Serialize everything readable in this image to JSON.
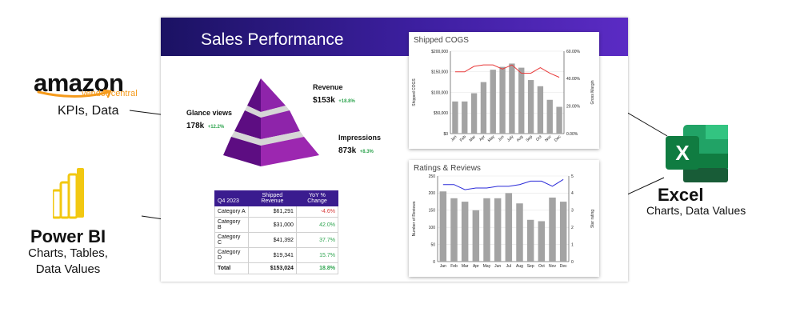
{
  "amazon": {
    "wordmark": "amazon",
    "sub": "vendor central",
    "caption": "KPIs, Data"
  },
  "powerbi": {
    "title": "Power BI",
    "lines": [
      "Charts, Tables,",
      "Data Values"
    ]
  },
  "excel": {
    "title": "Excel",
    "caption": "Charts, Data Values",
    "icon_letter": "X"
  },
  "slide": {
    "title": "Sales Performance",
    "pyramid": [
      {
        "label": "Revenue",
        "value": "$153k",
        "change": "+18.8%"
      },
      {
        "label": "Glance views",
        "value": "178k",
        "change": "+12.2%"
      },
      {
        "label": "Impressions",
        "value": "873k",
        "change": "+8.3%"
      }
    ],
    "table": {
      "headers": [
        "Q4 2023",
        "Shipped Revenue",
        "YoY % Change"
      ],
      "rows": [
        {
          "category": "Category A",
          "revenue": "$61,291",
          "change": "-4.6%"
        },
        {
          "category": "Category B",
          "revenue": "$31,000",
          "change": "42.0%"
        },
        {
          "category": "Category C",
          "revenue": "$41,392",
          "change": "37.7%"
        },
        {
          "category": "Category D",
          "revenue": "$19,341",
          "change": "15.7%"
        }
      ],
      "total": {
        "category": "Total",
        "revenue": "$153,024",
        "change": "18.8%"
      }
    }
  },
  "colors": {
    "header_start": "#1b1263",
    "header_end": "#5b2bc4",
    "bar": "#a3a3a3",
    "line_red": "#e83a3a",
    "line_blue": "#2a2ad8",
    "positive": "#2ea44f",
    "negative": "#d83b3b",
    "pyramid": "#7b1fa2"
  },
  "chart_data": [
    {
      "type": "bar",
      "title": "Shipped COGS",
      "categories": [
        "Jan",
        "Feb",
        "Mar",
        "Apr",
        "May",
        "Jun",
        "July",
        "Aug",
        "Sep",
        "Oct",
        "Nov",
        "Dec"
      ],
      "series": [
        {
          "values": [
            78000,
            78000,
            98000,
            125000,
            155000,
            162000,
            170000,
            160000,
            130000,
            115000,
            82000,
            65000
          ],
          "axis": "left",
          "kind": "bar"
        },
        {
          "values": [
            45,
            45,
            49,
            50,
            50,
            47,
            50,
            44,
            44,
            48,
            44,
            41
          ],
          "axis": "right",
          "kind": "line"
        }
      ],
      "ylabel": "Shipped COGS",
      "y2label": "Gross Margin",
      "ylim": [
        0,
        200000
      ],
      "y2lim": [
        0,
        60
      ],
      "yticks": [
        "$0",
        "$50,000",
        "$100,000",
        "$150,000",
        "$200,000"
      ],
      "y2ticks": [
        "0.00%",
        "20.00%",
        "40.00%",
        "60.00%"
      ]
    },
    {
      "type": "bar",
      "title": "Ratings & Reviews",
      "categories": [
        "Jan",
        "Feb",
        "Mar",
        "Apr",
        "May",
        "Jun",
        "Jul",
        "Aug",
        "Sep",
        "Oct",
        "Nov",
        "Dec"
      ],
      "series": [
        {
          "values": [
            205,
            185,
            175,
            150,
            185,
            185,
            200,
            170,
            122,
            118,
            187,
            175
          ],
          "axis": "left",
          "kind": "bar"
        },
        {
          "values": [
            4.5,
            4.5,
            4.2,
            4.3,
            4.3,
            4.4,
            4.4,
            4.5,
            4.7,
            4.7,
            4.4,
            4.8
          ],
          "axis": "right",
          "kind": "line"
        }
      ],
      "ylabel": "Number of Reviews",
      "y2label": "Star rating",
      "ylim": [
        0,
        250
      ],
      "y2lim": [
        0,
        5
      ],
      "yticks": [
        "0",
        "50",
        "100",
        "150",
        "200",
        "250"
      ],
      "y2ticks": [
        "0",
        "1",
        "2",
        "3",
        "4",
        "5"
      ]
    }
  ]
}
